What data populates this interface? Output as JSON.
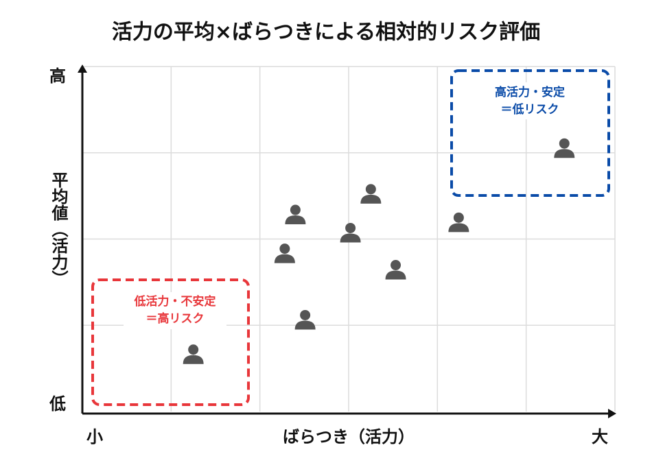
{
  "chart_data": {
    "type": "scatter",
    "title": "活力の平均×ばらつきによる相対的リスク評価",
    "x_label": "ばらつき（活力）",
    "y_label": "平均値（活力）",
    "x_min_label": "小",
    "x_max_label": "大",
    "y_max_label": "高",
    "y_min_label": "低",
    "x": [
      1.25,
      2.28,
      2.4,
      2.51,
      3.02,
      3.25,
      3.53,
      4.24,
      5.43
    ],
    "y": [
      0.67,
      1.84,
      2.29,
      1.07,
      2.08,
      2.53,
      1.65,
      2.2,
      3.06
    ],
    "color": "#555555",
    "xlim": [
      0,
      6
    ],
    "ylim": [
      0,
      4
    ],
    "xticks": [
      1,
      2,
      3,
      4,
      5,
      6
    ],
    "yticks": [
      1,
      2,
      3,
      4
    ],
    "grid": true,
    "annotations": [
      {
        "lines": [
          "低活力・不安定",
          "＝高リスク"
        ],
        "color": "#e8363a"
      },
      {
        "lines": [
          "高活力・安定",
          "＝低リスク"
        ],
        "color": "#0a4ba8"
      }
    ]
  }
}
